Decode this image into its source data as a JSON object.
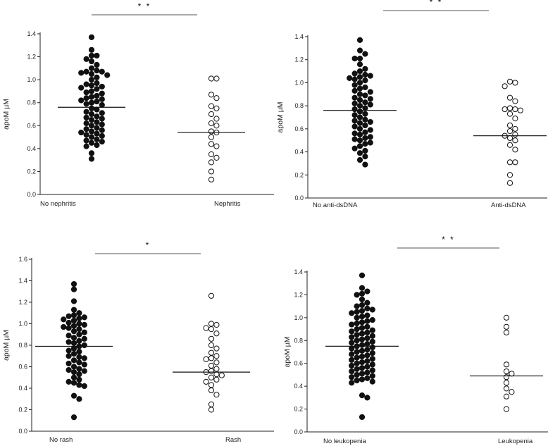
{
  "chart_data": [
    {
      "type": "scatter",
      "title": "",
      "ylabel": "apoM µM",
      "xlabel": "",
      "ylim": [
        0,
        1.4
      ],
      "yticks": [
        "0.0",
        "0.2",
        "0.4",
        "0.6",
        "0.8",
        "1.0",
        "1.2",
        "1.4"
      ],
      "categories": [
        "No nephritis",
        "Nephritis"
      ],
      "significance": "* *",
      "series": [
        {
          "fill": "filled",
          "median": 0.76,
          "values": [
            1.37,
            1.26,
            1.21,
            1.21,
            1.18,
            1.16,
            1.13,
            1.1,
            1.08,
            1.07,
            1.07,
            1.06,
            1.05,
            1.04,
            1.02,
            1.0,
            0.97,
            0.96,
            0.95,
            0.94,
            0.93,
            0.92,
            0.9,
            0.89,
            0.88,
            0.86,
            0.85,
            0.84,
            0.83,
            0.82,
            0.81,
            0.8,
            0.79,
            0.78,
            0.75,
            0.74,
            0.72,
            0.71,
            0.7,
            0.68,
            0.67,
            0.66,
            0.65,
            0.63,
            0.62,
            0.61,
            0.6,
            0.58,
            0.57,
            0.56,
            0.55,
            0.54,
            0.53,
            0.52,
            0.51,
            0.5,
            0.48,
            0.47,
            0.46,
            0.45,
            0.43,
            0.42,
            0.36,
            0.31
          ]
        },
        {
          "fill": "open",
          "median": 0.54,
          "values": [
            1.01,
            1.01,
            0.87,
            0.84,
            0.77,
            0.75,
            0.7,
            0.66,
            0.62,
            0.6,
            0.55,
            0.54,
            0.5,
            0.44,
            0.42,
            0.35,
            0.32,
            0.28,
            0.2,
            0.13
          ]
        }
      ]
    },
    {
      "type": "scatter",
      "title": "",
      "ylabel": "apoM µM",
      "xlabel": "",
      "ylim": [
        0,
        1.4
      ],
      "yticks": [
        "0.0",
        "0.2",
        "0.4",
        "0.6",
        "0.8",
        "1.0",
        "1.2",
        "1.4"
      ],
      "categories": [
        "No anti-dsDNA",
        "Anti-dsDNA"
      ],
      "significance": "* *",
      "series": [
        {
          "fill": "filled",
          "median": 0.76,
          "values": [
            1.37,
            1.28,
            1.25,
            1.21,
            1.21,
            1.16,
            1.12,
            1.1,
            1.08,
            1.07,
            1.06,
            1.05,
            1.04,
            1.03,
            1.02,
            1.0,
            0.98,
            0.96,
            0.95,
            0.93,
            0.92,
            0.9,
            0.89,
            0.87,
            0.86,
            0.85,
            0.83,
            0.82,
            0.81,
            0.8,
            0.78,
            0.77,
            0.75,
            0.73,
            0.72,
            0.7,
            0.68,
            0.67,
            0.66,
            0.65,
            0.63,
            0.62,
            0.6,
            0.59,
            0.57,
            0.56,
            0.55,
            0.53,
            0.52,
            0.51,
            0.5,
            0.48,
            0.47,
            0.45,
            0.43,
            0.41,
            0.39,
            0.36,
            0.33,
            0.29
          ]
        },
        {
          "fill": "open",
          "median": 0.54,
          "values": [
            1.01,
            1.0,
            0.97,
            0.87,
            0.84,
            0.78,
            0.77,
            0.77,
            0.76,
            0.73,
            0.69,
            0.63,
            0.6,
            0.58,
            0.55,
            0.54,
            0.52,
            0.5,
            0.46,
            0.42,
            0.31,
            0.31,
            0.2,
            0.13
          ]
        }
      ]
    },
    {
      "type": "scatter",
      "title": "",
      "ylabel": "apoM µM",
      "xlabel": "",
      "ylim": [
        0,
        1.6
      ],
      "yticks": [
        "0.0",
        "0.2",
        "0.4",
        "0.6",
        "0.8",
        "1.0",
        "1.2",
        "1.4",
        "1.6"
      ],
      "categories": [
        "No rash",
        "Rash"
      ],
      "significance": "*",
      "series": [
        {
          "fill": "filled",
          "median": 0.79,
          "values": [
            1.37,
            1.32,
            1.21,
            1.13,
            1.1,
            1.08,
            1.07,
            1.06,
            1.05,
            1.04,
            1.03,
            1.01,
            1.0,
            0.99,
            0.98,
            0.97,
            0.96,
            0.95,
            0.93,
            0.92,
            0.9,
            0.89,
            0.87,
            0.86,
            0.84,
            0.83,
            0.82,
            0.8,
            0.79,
            0.77,
            0.75,
            0.74,
            0.72,
            0.7,
            0.69,
            0.68,
            0.66,
            0.64,
            0.63,
            0.62,
            0.6,
            0.58,
            0.57,
            0.56,
            0.55,
            0.53,
            0.5,
            0.48,
            0.46,
            0.45,
            0.43,
            0.42,
            0.33,
            0.3,
            0.13
          ]
        },
        {
          "fill": "open",
          "median": 0.55,
          "values": [
            1.26,
            1.0,
            0.99,
            0.96,
            0.95,
            0.91,
            0.86,
            0.8,
            0.77,
            0.73,
            0.7,
            0.68,
            0.67,
            0.64,
            0.61,
            0.58,
            0.56,
            0.55,
            0.53,
            0.52,
            0.5,
            0.48,
            0.46,
            0.43,
            0.38,
            0.34,
            0.25,
            0.2
          ]
        }
      ]
    },
    {
      "type": "scatter",
      "title": "",
      "ylabel": "apoM µM",
      "xlabel": "",
      "ylim": [
        0,
        1.4
      ],
      "yticks": [
        "0.0",
        "0.2",
        "0.4",
        "0.6",
        "0.8",
        "1.0",
        "1.2",
        "1.4"
      ],
      "categories": [
        "No leukopenia",
        "Leukopenia"
      ],
      "significance": "* *",
      "series": [
        {
          "fill": "filled",
          "median": 0.75,
          "values": [
            1.37,
            1.26,
            1.23,
            1.21,
            1.2,
            1.16,
            1.13,
            1.11,
            1.1,
            1.08,
            1.07,
            1.06,
            1.05,
            1.04,
            1.02,
            1.01,
            1.0,
            0.98,
            0.97,
            0.96,
            0.95,
            0.94,
            0.92,
            0.91,
            0.9,
            0.89,
            0.88,
            0.87,
            0.86,
            0.85,
            0.84,
            0.83,
            0.82,
            0.81,
            0.8,
            0.79,
            0.78,
            0.77,
            0.76,
            0.75,
            0.74,
            0.73,
            0.72,
            0.71,
            0.7,
            0.69,
            0.68,
            0.67,
            0.66,
            0.65,
            0.64,
            0.63,
            0.62,
            0.61,
            0.6,
            0.59,
            0.58,
            0.57,
            0.56,
            0.55,
            0.54,
            0.53,
            0.52,
            0.51,
            0.5,
            0.49,
            0.48,
            0.47,
            0.46,
            0.45,
            0.44,
            0.43,
            0.32,
            0.3,
            0.13
          ]
        },
        {
          "fill": "open",
          "median": 0.49,
          "values": [
            1.0,
            0.92,
            0.87,
            0.59,
            0.53,
            0.51,
            0.48,
            0.43,
            0.38,
            0.35,
            0.31,
            0.2
          ]
        }
      ]
    }
  ]
}
